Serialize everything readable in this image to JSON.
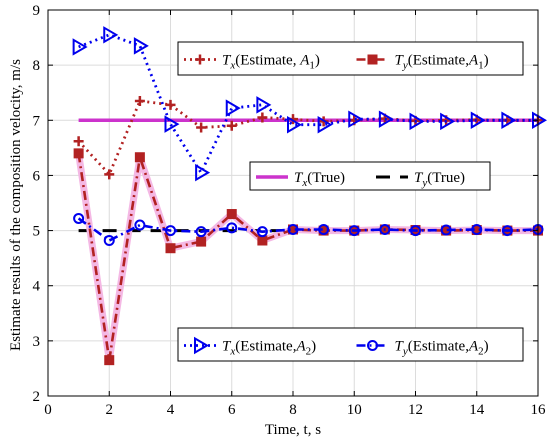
{
  "chart_data": {
    "type": "line",
    "xlabel": "Time,  t, s",
    "ylabel": "Estimate results of the composition velocity, m/s",
    "xlim": [
      0,
      16
    ],
    "ylim": [
      2,
      9
    ],
    "xticks": [
      0,
      2,
      4,
      6,
      8,
      10,
      12,
      14,
      16
    ],
    "yticks": [
      2,
      3,
      4,
      5,
      6,
      7,
      8,
      9
    ],
    "grid": true,
    "series": [
      {
        "id": "tx_true",
        "name": "T_x(True)",
        "color": "#cc33cc",
        "style": "solid",
        "marker": "none",
        "x": [
          1,
          16
        ],
        "y": [
          7,
          7
        ]
      },
      {
        "id": "ty_true",
        "name": "T_y(True)",
        "color": "#000000",
        "style": "dashed",
        "marker": "none",
        "x": [
          1,
          16
        ],
        "y": [
          5,
          5
        ]
      },
      {
        "id": "tx_a1",
        "name": "T_x(Estimate, A_1)",
        "color": "#b22222",
        "style": "dotted",
        "marker": "plus",
        "x": [
          1,
          2,
          3,
          4,
          5,
          6,
          7,
          8,
          9,
          10,
          11,
          12,
          13,
          14,
          15,
          16
        ],
        "y": [
          6.62,
          6.02,
          7.35,
          7.28,
          6.87,
          6.9,
          7.05,
          7.02,
          6.98,
          7.0,
          7.03,
          6.99,
          7.0,
          7.01,
          7.0,
          7.0
        ]
      },
      {
        "id": "ty_a1",
        "name": "T_y(Estimate,A_1)",
        "color": "#b22222",
        "style": "dashdot",
        "marker": "square",
        "x": [
          1,
          2,
          3,
          4,
          5,
          6,
          7,
          8,
          9,
          10,
          11,
          12,
          13,
          14,
          15,
          16
        ],
        "y": [
          6.4,
          2.65,
          6.33,
          4.68,
          4.8,
          5.3,
          4.82,
          5.02,
          5.0,
          5.0,
          5.02,
          5.01,
          5.0,
          5.01,
          5.0,
          5.0
        ]
      },
      {
        "id": "tx_a2",
        "name": "T_x(Estimate,A_2)",
        "color": "#0000ee",
        "style": "dotted",
        "marker": "triangle-right",
        "x": [
          1,
          2,
          3,
          4,
          5,
          6,
          7,
          8,
          9,
          10,
          11,
          12,
          13,
          14,
          15,
          16
        ],
        "y": [
          8.33,
          8.55,
          8.35,
          6.93,
          6.05,
          7.22,
          7.28,
          6.92,
          6.92,
          7.02,
          7.02,
          6.98,
          6.98,
          7.0,
          7.0,
          7.0
        ]
      },
      {
        "id": "ty_a2",
        "name": "T_y(Estimate,A_2)",
        "color": "#0000ee",
        "style": "dashdot",
        "marker": "circle",
        "x": [
          1,
          2,
          3,
          4,
          5,
          6,
          7,
          8,
          9,
          10,
          11,
          12,
          13,
          14,
          15,
          16
        ],
        "y": [
          5.22,
          4.82,
          5.1,
          5.0,
          4.98,
          5.05,
          4.98,
          5.02,
          5.02,
          5.0,
          5.02,
          5.0,
          5.01,
          5.02,
          5.0,
          5.02
        ]
      }
    ],
    "legends": [
      {
        "id": "legend-a1",
        "position": "top-center",
        "entries": [
          {
            "series": "tx_a1",
            "sym": "T",
            "sub": "x",
            "text": "(Estimate, ",
            "ital": "A",
            "itsub": "1",
            "tail": ")"
          },
          {
            "series": "ty_a1",
            "sym": "T",
            "sub": "y",
            "text": "(Estimate,",
            "ital": "A",
            "itsub": "1",
            "tail": ")"
          }
        ]
      },
      {
        "id": "legend-true",
        "position": "middle-right",
        "entries": [
          {
            "series": "tx_true",
            "sym": "T",
            "sub": "x",
            "text": "(True)",
            "ital": "",
            "itsub": "",
            "tail": ""
          },
          {
            "series": "ty_true",
            "sym": "T",
            "sub": "y",
            "text": "(True)",
            "ital": "",
            "itsub": "",
            "tail": ""
          }
        ]
      },
      {
        "id": "legend-a2",
        "position": "bottom-right",
        "entries": [
          {
            "series": "tx_a2",
            "sym": "T",
            "sub": "x",
            "text": "(Estimate,",
            "ital": "A",
            "itsub": "2",
            "tail": ")"
          },
          {
            "series": "ty_a2",
            "sym": "T",
            "sub": "y",
            "text": "(Estimate,",
            "ital": "A",
            "itsub": "2",
            "tail": ")"
          }
        ]
      }
    ]
  }
}
